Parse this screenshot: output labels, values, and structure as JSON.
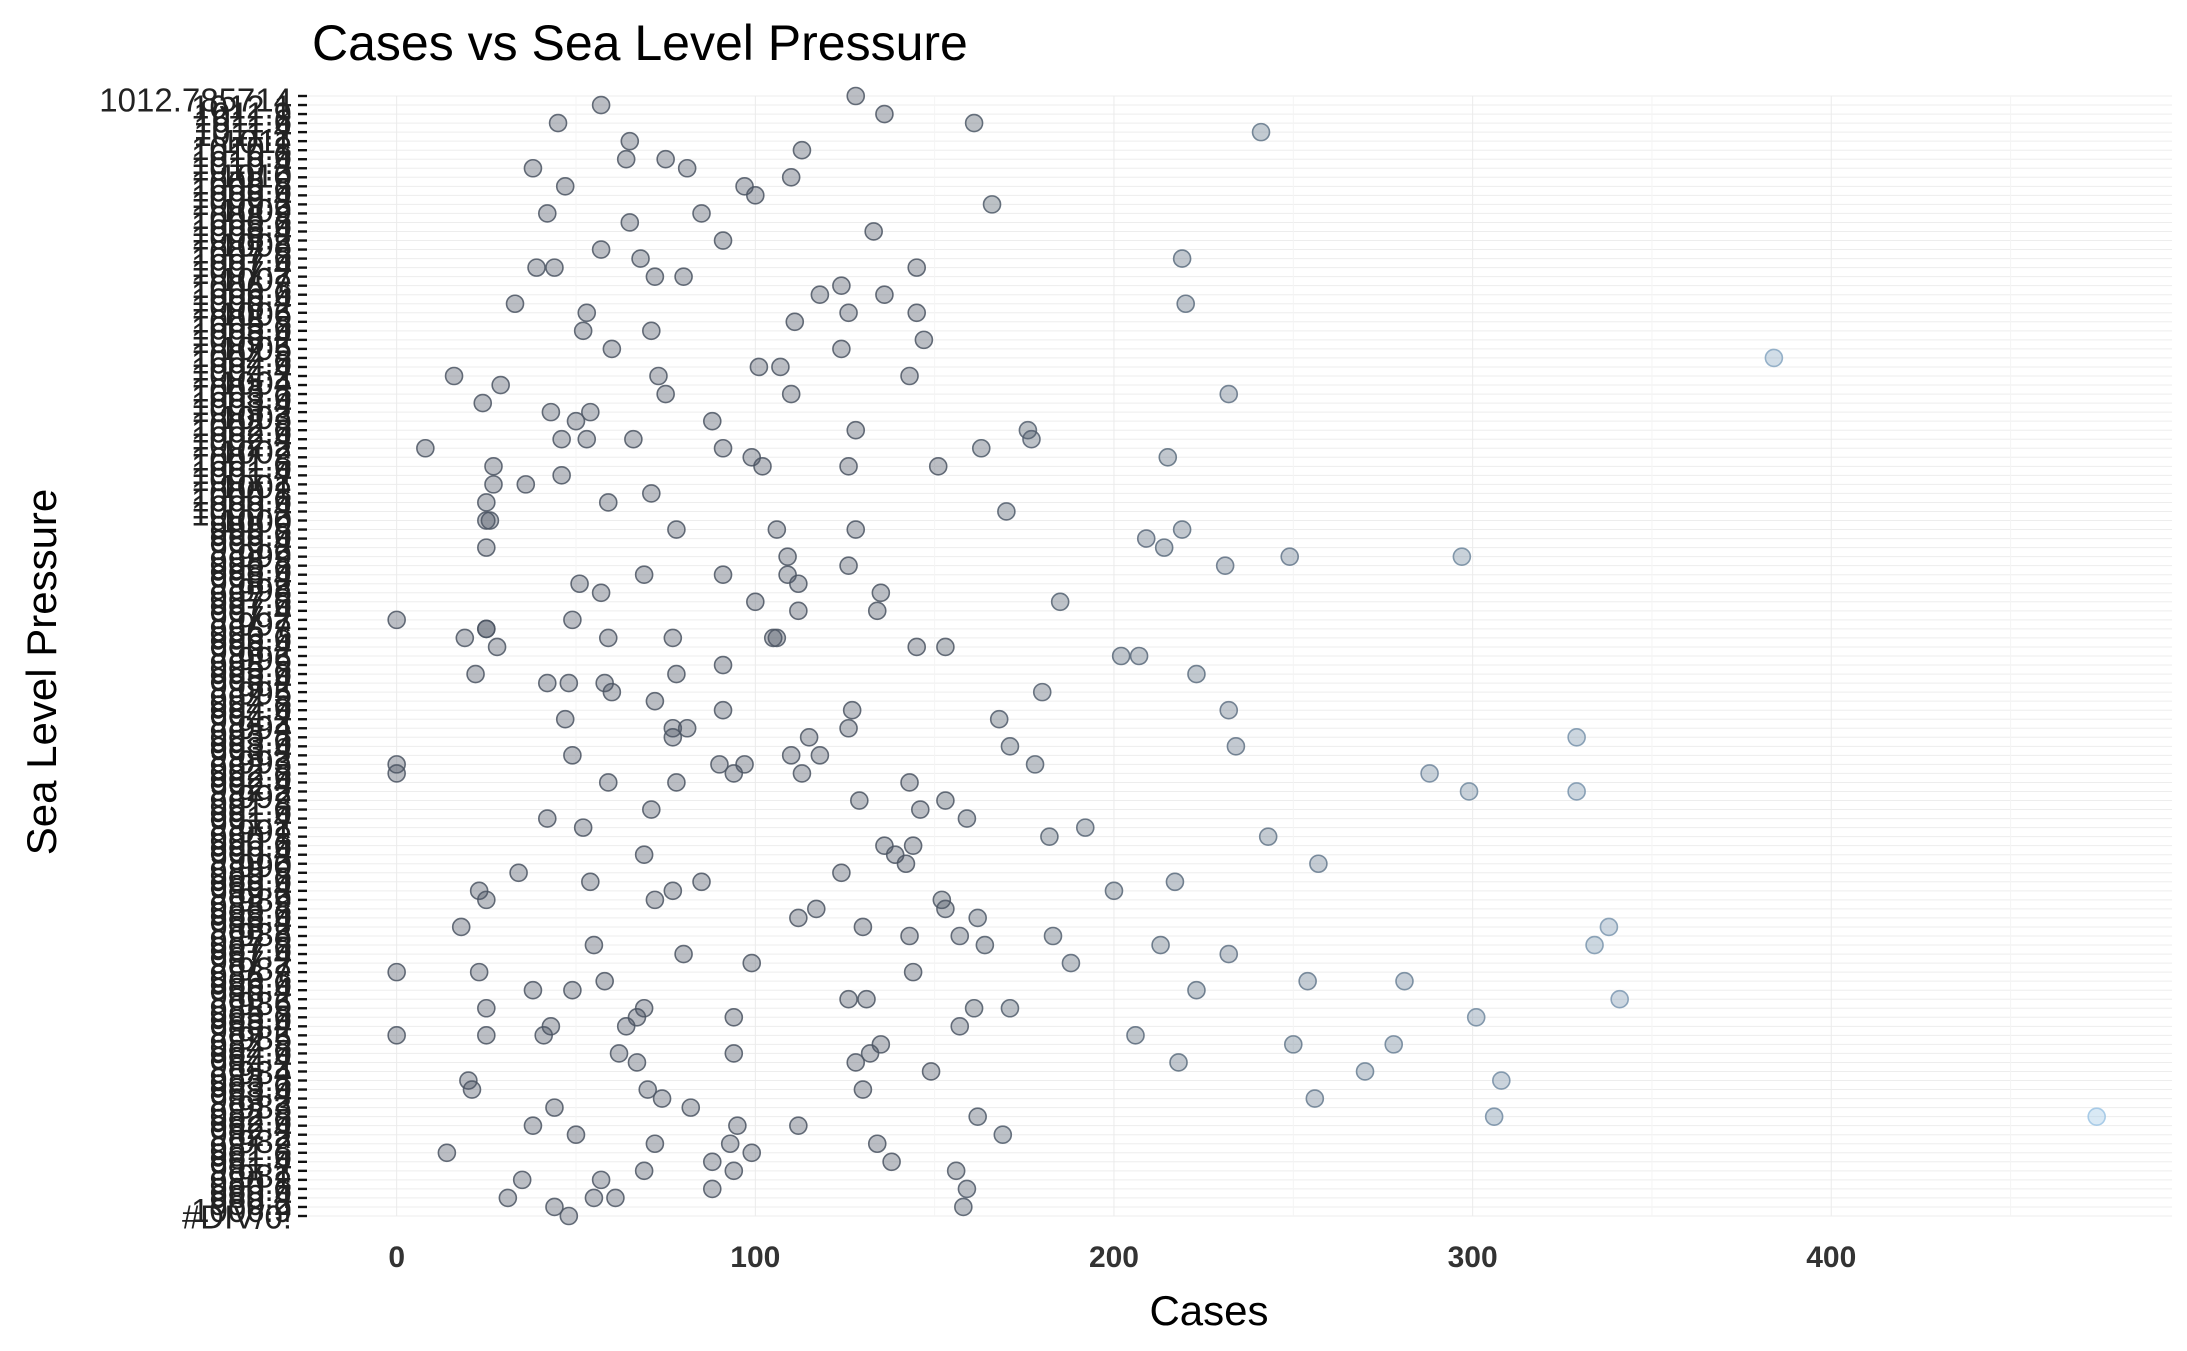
{
  "chart_data": {
    "type": "scatter",
    "title": "Cases vs Sea Level Pressure",
    "xlabel": "Cases",
    "ylabel": "Sea Level Pressure",
    "xlim": [
      -25,
      495
    ],
    "x_ticks": [
      0,
      100,
      200,
      300,
      400
    ],
    "y_axis": "categorical",
    "y_tick_labels": [
      "1012.785714",
      "1012.1",
      "1011.9",
      "1011.6",
      "1011.4",
      "1011.2",
      "1011",
      "1010.8",
      "1010.6",
      "1010.4",
      "1010.2",
      "1010",
      "1009.8",
      "1009.6",
      "1009.4",
      "1009.2",
      "1009",
      "1008.8",
      "1008.6",
      "1008.4",
      "1008.2",
      "1008",
      "1007.8",
      "1007.6",
      "1007.4",
      "1007.2",
      "1007",
      "1006.8",
      "1006.6",
      "1006.4",
      "1006.2",
      "1006",
      "1005.8",
      "1005.6",
      "1005.4",
      "1005.2",
      "1005",
      "1004.8",
      "1004.6",
      "1004.4",
      "1004.2",
      "1004",
      "1003.8",
      "1003.6",
      "1003.4",
      "1003.2",
      "1003",
      "1002.8",
      "1002.6",
      "1002.4",
      "1002.2",
      "1002",
      "1001.8",
      "1001.6",
      "1001.4",
      "1001.2",
      "1001",
      "1000.8",
      "1000.6",
      "1000.4",
      "1000.2",
      "1000",
      "999.8",
      "999.6",
      "999.4",
      "999.2",
      "999",
      "998.8",
      "998.6",
      "998.4",
      "998.2",
      "998",
      "997.8",
      "997.6",
      "997.4",
      "997.2",
      "997",
      "996.8",
      "996.6",
      "996.4",
      "996.2",
      "996",
      "995.8",
      "995.6",
      "995.4",
      "995.2",
      "995",
      "994.8",
      "994.6",
      "994.4",
      "994.2",
      "994",
      "993.8",
      "993.6",
      "993.4",
      "993.2",
      "993",
      "992.8",
      "992.6",
      "992.4",
      "992.2",
      "992",
      "991.8",
      "991.6",
      "991.4",
      "991.2",
      "991",
      "990.8",
      "990.6",
      "990.4",
      "990.2",
      "990",
      "989.8",
      "989.6",
      "989.4",
      "989.2",
      "989",
      "988.8",
      "988.6",
      "988.4",
      "988.2",
      "988",
      "987.8",
      "987.6",
      "987.4",
      "987.2",
      "987",
      "986.8",
      "986.6",
      "986.4",
      "986.2",
      "986",
      "985.8",
      "985.6",
      "985.4",
      "985.2",
      "985",
      "984.8",
      "984.6",
      "984.4",
      "984.2",
      "984",
      "983.8",
      "983.6",
      "983.4",
      "983.2",
      "983",
      "982.8",
      "982.6",
      "982.4",
      "982.2",
      "982",
      "981.8",
      "981.6",
      "981.4",
      "981.2",
      "981",
      "980.8",
      "980.6",
      "980.4",
      "980.2",
      "1006.9",
      "#DIV/0!"
    ],
    "y_first_label": "1012.785714",
    "y_last_labels": [
      "1006.9",
      "#DIV/0!"
    ],
    "grid": true,
    "legend": "none",
    "point_colors": {
      "low": "#4b5563",
      "high": "#9cc4e4"
    },
    "points": [
      {
        "x": 128,
        "y": 0
      },
      {
        "x": 57,
        "y": 1
      },
      {
        "x": 136,
        "y": 2
      },
      {
        "x": 45,
        "y": 3
      },
      {
        "x": 161,
        "y": 3
      },
      {
        "x": 241,
        "y": 4
      },
      {
        "x": 65,
        "y": 5
      },
      {
        "x": 113,
        "y": 6
      },
      {
        "x": 64,
        "y": 7
      },
      {
        "x": 75,
        "y": 7
      },
      {
        "x": 81,
        "y": 8
      },
      {
        "x": 38,
        "y": 8
      },
      {
        "x": 110,
        "y": 9
      },
      {
        "x": 97,
        "y": 10
      },
      {
        "x": 47,
        "y": 10
      },
      {
        "x": 100,
        "y": 11
      },
      {
        "x": 166,
        "y": 12
      },
      {
        "x": 42,
        "y": 13
      },
      {
        "x": 85,
        "y": 13
      },
      {
        "x": 65,
        "y": 14
      },
      {
        "x": 133,
        "y": 15
      },
      {
        "x": 91,
        "y": 16
      },
      {
        "x": 57,
        "y": 17
      },
      {
        "x": 68,
        "y": 18
      },
      {
        "x": 219,
        "y": 18
      },
      {
        "x": 39,
        "y": 19
      },
      {
        "x": 44,
        "y": 19
      },
      {
        "x": 145,
        "y": 19
      },
      {
        "x": 72,
        "y": 20
      },
      {
        "x": 80,
        "y": 20
      },
      {
        "x": 124,
        "y": 21
      },
      {
        "x": 118,
        "y": 22
      },
      {
        "x": 136,
        "y": 22
      },
      {
        "x": 33,
        "y": 23
      },
      {
        "x": 220,
        "y": 23
      },
      {
        "x": 53,
        "y": 24
      },
      {
        "x": 145,
        "y": 24
      },
      {
        "x": 126,
        "y": 24
      },
      {
        "x": 111,
        "y": 25
      },
      {
        "x": 71,
        "y": 26
      },
      {
        "x": 52,
        "y": 26
      },
      {
        "x": 147,
        "y": 27
      },
      {
        "x": 60,
        "y": 28
      },
      {
        "x": 124,
        "y": 28
      },
      {
        "x": 384,
        "y": 29
      },
      {
        "x": 107,
        "y": 30
      },
      {
        "x": 101,
        "y": 30
      },
      {
        "x": 16,
        "y": 31
      },
      {
        "x": 143,
        "y": 31
      },
      {
        "x": 73,
        "y": 31
      },
      {
        "x": 29,
        "y": 32
      },
      {
        "x": 110,
        "y": 33
      },
      {
        "x": 75,
        "y": 33
      },
      {
        "x": 232,
        "y": 33
      },
      {
        "x": 24,
        "y": 34
      },
      {
        "x": 54,
        "y": 35
      },
      {
        "x": 43,
        "y": 35
      },
      {
        "x": 88,
        "y": 36
      },
      {
        "x": 50,
        "y": 36
      },
      {
        "x": 128,
        "y": 37
      },
      {
        "x": 176,
        "y": 37
      },
      {
        "x": 177,
        "y": 38
      },
      {
        "x": 46,
        "y": 38
      },
      {
        "x": 53,
        "y": 38
      },
      {
        "x": 66,
        "y": 38
      },
      {
        "x": 91,
        "y": 39
      },
      {
        "x": 163,
        "y": 39
      },
      {
        "x": 8,
        "y": 39
      },
      {
        "x": 99,
        "y": 40
      },
      {
        "x": 215,
        "y": 40
      },
      {
        "x": 27,
        "y": 41
      },
      {
        "x": 102,
        "y": 41
      },
      {
        "x": 151,
        "y": 41
      },
      {
        "x": 126,
        "y": 41
      },
      {
        "x": 46,
        "y": 42
      },
      {
        "x": 36,
        "y": 43
      },
      {
        "x": 27,
        "y": 43
      },
      {
        "x": 71,
        "y": 44
      },
      {
        "x": 25,
        "y": 45
      },
      {
        "x": 59,
        "y": 45
      },
      {
        "x": 170,
        "y": 46
      },
      {
        "x": 26,
        "y": 47
      },
      {
        "x": 25,
        "y": 47
      },
      {
        "x": 219,
        "y": 48
      },
      {
        "x": 106,
        "y": 48
      },
      {
        "x": 128,
        "y": 48
      },
      {
        "x": 78,
        "y": 48
      },
      {
        "x": 209,
        "y": 49
      },
      {
        "x": 25,
        "y": 50
      },
      {
        "x": 214,
        "y": 50
      },
      {
        "x": 109,
        "y": 51
      },
      {
        "x": 249,
        "y": 51
      },
      {
        "x": 297,
        "y": 51
      },
      {
        "x": 126,
        "y": 52
      },
      {
        "x": 231,
        "y": 52
      },
      {
        "x": 69,
        "y": 53
      },
      {
        "x": 91,
        "y": 53
      },
      {
        "x": 109,
        "y": 53
      },
      {
        "x": 112,
        "y": 54
      },
      {
        "x": 51,
        "y": 54
      },
      {
        "x": 135,
        "y": 55
      },
      {
        "x": 57,
        "y": 55
      },
      {
        "x": 100,
        "y": 56
      },
      {
        "x": 185,
        "y": 56
      },
      {
        "x": 112,
        "y": 57
      },
      {
        "x": 134,
        "y": 57
      },
      {
        "x": 49,
        "y": 58
      },
      {
        "x": 0,
        "y": 58
      },
      {
        "x": 25,
        "y": 59
      },
      {
        "x": 25,
        "y": 59
      },
      {
        "x": 59,
        "y": 60
      },
      {
        "x": 19,
        "y": 60
      },
      {
        "x": 77,
        "y": 60
      },
      {
        "x": 106,
        "y": 60
      },
      {
        "x": 105,
        "y": 60
      },
      {
        "x": 145,
        "y": 61
      },
      {
        "x": 153,
        "y": 61
      },
      {
        "x": 28,
        "y": 61
      },
      {
        "x": 202,
        "y": 62
      },
      {
        "x": 207,
        "y": 62
      },
      {
        "x": 91,
        "y": 63
      },
      {
        "x": 22,
        "y": 64
      },
      {
        "x": 78,
        "y": 64
      },
      {
        "x": 223,
        "y": 64
      },
      {
        "x": 42,
        "y": 65
      },
      {
        "x": 58,
        "y": 65
      },
      {
        "x": 48,
        "y": 65
      },
      {
        "x": 180,
        "y": 66
      },
      {
        "x": 60,
        "y": 66
      },
      {
        "x": 72,
        "y": 67
      },
      {
        "x": 232,
        "y": 68
      },
      {
        "x": 127,
        "y": 68
      },
      {
        "x": 91,
        "y": 68
      },
      {
        "x": 168,
        "y": 69
      },
      {
        "x": 47,
        "y": 69
      },
      {
        "x": 77,
        "y": 70
      },
      {
        "x": 81,
        "y": 70
      },
      {
        "x": 126,
        "y": 70
      },
      {
        "x": 329,
        "y": 71
      },
      {
        "x": 115,
        "y": 71
      },
      {
        "x": 77,
        "y": 71
      },
      {
        "x": 171,
        "y": 72
      },
      {
        "x": 234,
        "y": 72
      },
      {
        "x": 110,
        "y": 73
      },
      {
        "x": 118,
        "y": 73
      },
      {
        "x": 49,
        "y": 73
      },
      {
        "x": 90,
        "y": 74
      },
      {
        "x": 97,
        "y": 74
      },
      {
        "x": 178,
        "y": 74
      },
      {
        "x": 0,
        "y": 74
      },
      {
        "x": 94,
        "y": 75
      },
      {
        "x": 0,
        "y": 75
      },
      {
        "x": 288,
        "y": 75
      },
      {
        "x": 113,
        "y": 75
      },
      {
        "x": 59,
        "y": 76
      },
      {
        "x": 78,
        "y": 76
      },
      {
        "x": 143,
        "y": 76
      },
      {
        "x": 299,
        "y": 77
      },
      {
        "x": 329,
        "y": 77
      },
      {
        "x": 129,
        "y": 78
      },
      {
        "x": 153,
        "y": 78
      },
      {
        "x": 146,
        "y": 79
      },
      {
        "x": 71,
        "y": 79
      },
      {
        "x": 159,
        "y": 80
      },
      {
        "x": 42,
        "y": 80
      },
      {
        "x": 52,
        "y": 81
      },
      {
        "x": 192,
        "y": 81
      },
      {
        "x": 243,
        "y": 82
      },
      {
        "x": 182,
        "y": 82
      },
      {
        "x": 136,
        "y": 83
      },
      {
        "x": 144,
        "y": 83
      },
      {
        "x": 69,
        "y": 84
      },
      {
        "x": 139,
        "y": 84
      },
      {
        "x": 257,
        "y": 85
      },
      {
        "x": 142,
        "y": 85
      },
      {
        "x": 124,
        "y": 86
      },
      {
        "x": 34,
        "y": 86
      },
      {
        "x": 85,
        "y": 87
      },
      {
        "x": 217,
        "y": 87
      },
      {
        "x": 54,
        "y": 87
      },
      {
        "x": 77,
        "y": 88
      },
      {
        "x": 23,
        "y": 88
      },
      {
        "x": 200,
        "y": 88
      },
      {
        "x": 72,
        "y": 89
      },
      {
        "x": 25,
        "y": 89
      },
      {
        "x": 152,
        "y": 89
      },
      {
        "x": 153,
        "y": 90
      },
      {
        "x": 117,
        "y": 90
      },
      {
        "x": 162,
        "y": 91
      },
      {
        "x": 112,
        "y": 91
      },
      {
        "x": 130,
        "y": 92
      },
      {
        "x": 338,
        "y": 92
      },
      {
        "x": 18,
        "y": 92
      },
      {
        "x": 183,
        "y": 93
      },
      {
        "x": 157,
        "y": 93
      },
      {
        "x": 143,
        "y": 93
      },
      {
        "x": 55,
        "y": 94
      },
      {
        "x": 164,
        "y": 94
      },
      {
        "x": 213,
        "y": 94
      },
      {
        "x": 334,
        "y": 94
      },
      {
        "x": 80,
        "y": 95
      },
      {
        "x": 232,
        "y": 95
      },
      {
        "x": 188,
        "y": 96
      },
      {
        "x": 99,
        "y": 96
      },
      {
        "x": 144,
        "y": 97
      },
      {
        "x": 23,
        "y": 97
      },
      {
        "x": 0,
        "y": 97
      },
      {
        "x": 58,
        "y": 98
      },
      {
        "x": 281,
        "y": 98
      },
      {
        "x": 254,
        "y": 98
      },
      {
        "x": 223,
        "y": 99
      },
      {
        "x": 49,
        "y": 99
      },
      {
        "x": 38,
        "y": 99
      },
      {
        "x": 341,
        "y": 100
      },
      {
        "x": 126,
        "y": 100
      },
      {
        "x": 131,
        "y": 100
      },
      {
        "x": 25,
        "y": 101
      },
      {
        "x": 69,
        "y": 101
      },
      {
        "x": 161,
        "y": 101
      },
      {
        "x": 171,
        "y": 101
      },
      {
        "x": 301,
        "y": 102
      },
      {
        "x": 94,
        "y": 102
      },
      {
        "x": 67,
        "y": 102
      },
      {
        "x": 43,
        "y": 103
      },
      {
        "x": 157,
        "y": 103
      },
      {
        "x": 64,
        "y": 103
      },
      {
        "x": 0,
        "y": 104
      },
      {
        "x": 41,
        "y": 104
      },
      {
        "x": 25,
        "y": 104
      },
      {
        "x": 206,
        "y": 104
      },
      {
        "x": 278,
        "y": 105
      },
      {
        "x": 135,
        "y": 105
      },
      {
        "x": 250,
        "y": 105
      },
      {
        "x": 132,
        "y": 106
      },
      {
        "x": 62,
        "y": 106
      },
      {
        "x": 94,
        "y": 106
      },
      {
        "x": 67,
        "y": 107
      },
      {
        "x": 218,
        "y": 107
      },
      {
        "x": 128,
        "y": 107
      },
      {
        "x": 149,
        "y": 108
      },
      {
        "x": 270,
        "y": 108
      },
      {
        "x": 308,
        "y": 109
      },
      {
        "x": 20,
        "y": 109
      },
      {
        "x": 21,
        "y": 110
      },
      {
        "x": 70,
        "y": 110
      },
      {
        "x": 130,
        "y": 110
      },
      {
        "x": 74,
        "y": 111
      },
      {
        "x": 256,
        "y": 111
      },
      {
        "x": 44,
        "y": 112
      },
      {
        "x": 82,
        "y": 112
      },
      {
        "x": 474,
        "y": 113
      },
      {
        "x": 306,
        "y": 113
      },
      {
        "x": 162,
        "y": 113
      },
      {
        "x": 38,
        "y": 114
      },
      {
        "x": 95,
        "y": 114
      },
      {
        "x": 112,
        "y": 114
      },
      {
        "x": 169,
        "y": 115
      },
      {
        "x": 50,
        "y": 115
      },
      {
        "x": 134,
        "y": 116
      },
      {
        "x": 72,
        "y": 116
      },
      {
        "x": 93,
        "y": 116
      },
      {
        "x": 14,
        "y": 117
      },
      {
        "x": 99,
        "y": 117
      },
      {
        "x": 88,
        "y": 118
      },
      {
        "x": 138,
        "y": 118
      },
      {
        "x": 69,
        "y": 119
      },
      {
        "x": 94,
        "y": 119
      },
      {
        "x": 156,
        "y": 119
      },
      {
        "x": 57,
        "y": 120
      },
      {
        "x": 35,
        "y": 120
      },
      {
        "x": 88,
        "y": 121
      },
      {
        "x": 159,
        "y": 121
      },
      {
        "x": 55,
        "y": 122
      },
      {
        "x": 61,
        "y": 122
      },
      {
        "x": 31,
        "y": 122
      },
      {
        "x": 44,
        "y": 123
      },
      {
        "x": 158,
        "y": 123
      },
      {
        "x": 48,
        "y": 124
      }
    ]
  }
}
